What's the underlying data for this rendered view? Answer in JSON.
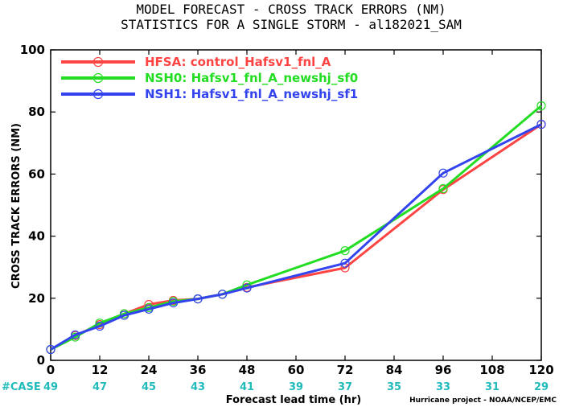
{
  "chart_data": {
    "type": "line",
    "title": "MODEL FORECAST - CROSS TRACK ERRORS (NM)",
    "subtitle": "STATISTICS FOR A SINGLE STORM - al182021_SAM",
    "xlabel": "Forecast lead time (hr)",
    "ylabel": "CROSS TRACK ERRORS (NM)",
    "xlim": [
      0,
      120
    ],
    "ylim": [
      0,
      100
    ],
    "xticks": [
      0,
      12,
      24,
      36,
      48,
      60,
      72,
      84,
      96,
      108,
      120
    ],
    "yticks": [
      0,
      20,
      40,
      60,
      80,
      100
    ],
    "grid": false,
    "legend_position": "top-left",
    "series": [
      {
        "name": "HFSA: control_Hafsv1_fnl_A",
        "color": "#ff4444",
        "x": [
          0,
          6,
          12,
          18,
          24,
          30,
          36,
          42,
          48,
          72,
          96,
          120
        ],
        "y": [
          3.5,
          8.0,
          11.5,
          15.0,
          18.0,
          19.3,
          19.8,
          21.3,
          23.5,
          29.8,
          55.0,
          76.0
        ]
      },
      {
        "name": "NSH0: Hafsv1_fnl_A_newshj_sf0",
        "color": "#22dd22",
        "x": [
          0,
          6,
          12,
          18,
          24,
          30,
          36,
          42,
          48,
          72,
          96,
          120
        ],
        "y": [
          3.5,
          7.5,
          12.0,
          15.0,
          17.0,
          19.0,
          19.8,
          21.3,
          24.3,
          35.3,
          55.3,
          82.0
        ]
      },
      {
        "name": "NSH1: Hafsv1_fnl_A_newshj_sf1",
        "color": "#3344ee",
        "x": [
          0,
          6,
          12,
          18,
          24,
          30,
          36,
          42,
          48,
          72,
          96,
          120
        ],
        "y": [
          3.5,
          8.2,
          11.0,
          14.5,
          16.5,
          18.5,
          19.8,
          21.3,
          23.3,
          31.3,
          60.3,
          76.0
        ]
      }
    ],
    "case_label": "#CASE",
    "case_color": "#22bbbb",
    "case_x": [
      0,
      12,
      24,
      36,
      48,
      60,
      72,
      84,
      96,
      108,
      120
    ],
    "case_counts": [
      "49",
      "47",
      "45",
      "43",
      "41",
      "39",
      "37",
      "35",
      "33",
      "31",
      "29"
    ],
    "credit": "Hurricane project - NOAA/NCEP/EMC"
  }
}
